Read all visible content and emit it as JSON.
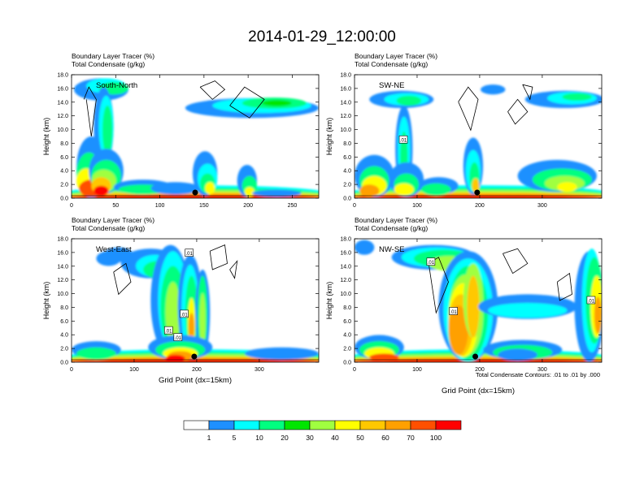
{
  "title": "2014-01-29_12:00:00",
  "shared": {
    "fill_label": "Boundary Layer Tracer",
    "fill_unit": "(%)",
    "contour_label": "Total Condensate",
    "contour_unit": "(g/kg)",
    "ylabel": "Height (km)",
    "xlabel": "Grid Point (dx=15km)",
    "contour_note": "Total Condensate Contours: .01 to .01 by .000",
    "contour_value": ".01"
  },
  "colorbar": {
    "colors": [
      "#ffffff",
      "#1e90ff",
      "#00ffff",
      "#00ff80",
      "#00e600",
      "#a0ff40",
      "#ffff00",
      "#ffc800",
      "#ffa000",
      "#ff5000",
      "#ff0000"
    ],
    "labels": [
      "1",
      "5",
      "10",
      "20",
      "30",
      "40",
      "50",
      "60",
      "70",
      "100"
    ]
  },
  "chart_data": [
    {
      "type": "heatmap",
      "name": "South-North",
      "xlim": [
        0,
        280
      ],
      "ylim": [
        0,
        18
      ],
      "xticks": [
        "0",
        "50",
        "100",
        "150",
        "200",
        "250"
      ],
      "xtick_values": [
        0,
        50,
        100,
        150,
        200,
        250
      ],
      "yticks": [
        "0.0",
        "2.0",
        "4.0",
        "6.0",
        "8.0",
        "10.0",
        "12.0",
        "14.0",
        "16.0",
        "18.0"
      ],
      "marker_x": 140,
      "contour_labels": []
    },
    {
      "type": "heatmap",
      "name": "SW-NE",
      "xlim": [
        0,
        395
      ],
      "ylim": [
        0,
        18
      ],
      "xticks": [
        "0",
        "100",
        "200",
        "300"
      ],
      "xtick_values": [
        0,
        100,
        200,
        300
      ],
      "yticks": [
        "0.0",
        "2.0",
        "4.0",
        "6.0",
        "8.0",
        "10.0",
        "12.0",
        "14.0",
        "16.0",
        "18.0"
      ],
      "marker_x": 196,
      "contour_labels": [
        {
          "x": 78,
          "y": 8.5
        }
      ]
    },
    {
      "type": "heatmap",
      "name": "West-East",
      "xlim": [
        0,
        395
      ],
      "ylim": [
        0,
        18
      ],
      "xticks": [
        "0",
        "100",
        "200",
        "300"
      ],
      "xtick_values": [
        0,
        100,
        200,
        300
      ],
      "yticks": [
        "0.0",
        "2.0",
        "4.0",
        "6.0",
        "8.0",
        "10.0",
        "12.0",
        "14.0",
        "16.0",
        "18.0"
      ],
      "marker_x": 196,
      "contour_labels": [
        {
          "x": 188,
          "y": 15.9
        },
        {
          "x": 180,
          "y": 7.0
        },
        {
          "x": 155,
          "y": 4.6
        },
        {
          "x": 170,
          "y": 3.6
        }
      ]
    },
    {
      "type": "heatmap",
      "name": "NW-SE",
      "xlim": [
        0,
        395
      ],
      "ylim": [
        0,
        18
      ],
      "xticks": [
        "0",
        "100",
        "200",
        "300"
      ],
      "xtick_values": [
        0,
        100,
        200,
        300
      ],
      "yticks": [
        "0.0",
        "2.0",
        "4.0",
        "6.0",
        "8.0",
        "10.0",
        "12.0",
        "14.0",
        "16.0",
        "18.0"
      ],
      "marker_x": 193,
      "contour_labels": [
        {
          "x": 122,
          "y": 14.6
        },
        {
          "x": 158,
          "y": 7.4
        },
        {
          "x": 378,
          "y": 9.0
        }
      ]
    }
  ]
}
